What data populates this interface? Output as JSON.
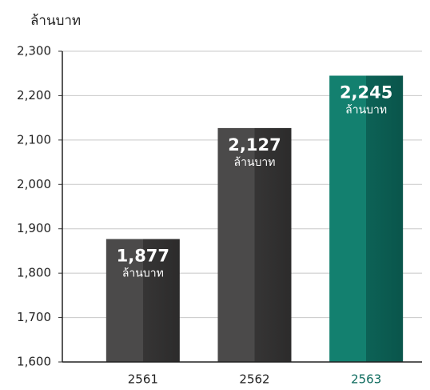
{
  "chart_data": {
    "type": "bar",
    "ylabel": "ล้านบาท",
    "categories": [
      "2561",
      "2562",
      "2563"
    ],
    "values": [
      1877,
      2127,
      2245
    ],
    "value_labels": [
      "1,877",
      "2,127",
      "2,245"
    ],
    "colors": [
      "gray",
      "gray",
      "teal"
    ],
    "ylim": [
      1600,
      2300
    ],
    "yticks": [
      {
        "value": 1600,
        "label": "1,600"
      },
      {
        "value": 1700,
        "label": "1,700"
      },
      {
        "value": 1800,
        "label": "1,800"
      },
      {
        "value": 1900,
        "label": "1,900"
      },
      {
        "value": 2000,
        "label": "2,000"
      },
      {
        "value": 2100,
        "label": "2,100"
      },
      {
        "value": 2200,
        "label": "2,200"
      },
      {
        "value": 2300,
        "label": "2,300"
      }
    ],
    "grid": true
  }
}
